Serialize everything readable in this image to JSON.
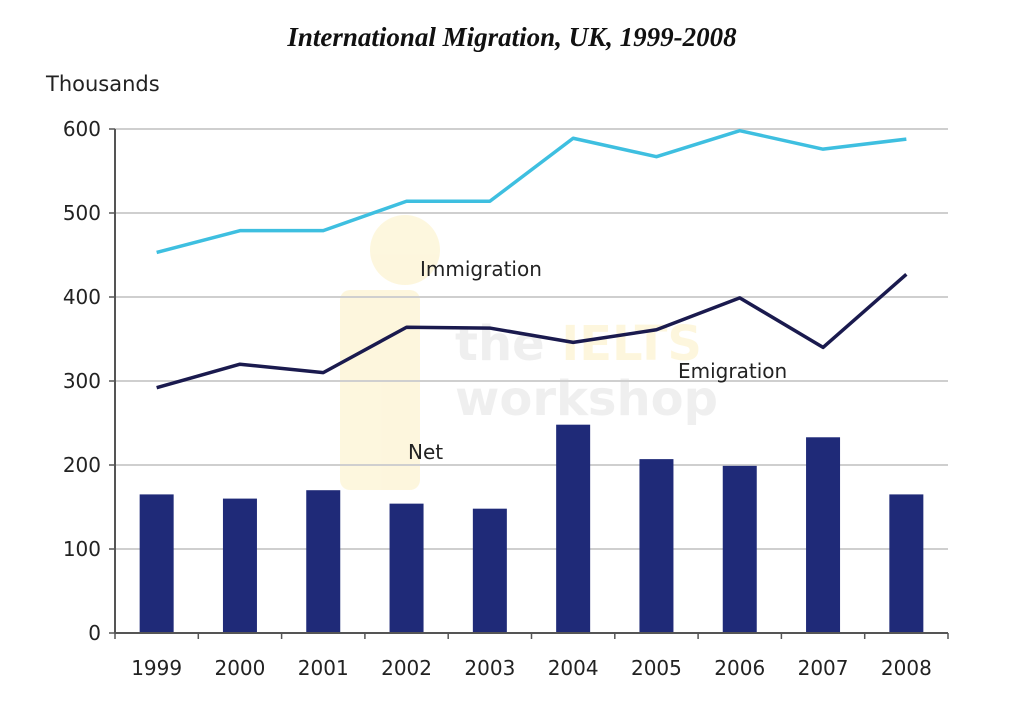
{
  "chart_data": {
    "type": "bar+line",
    "title": "International Migration, UK, 1999-2008",
    "ylabel": "Thousands",
    "xlabel": "",
    "ylim": [
      0,
      600
    ],
    "yticks": [
      0,
      100,
      200,
      300,
      400,
      500,
      600
    ],
    "grid": true,
    "categories": [
      "1999",
      "2000",
      "2001",
      "2002",
      "2003",
      "2004",
      "2005",
      "2006",
      "2007",
      "2008"
    ],
    "series": [
      {
        "name": "Immigration",
        "type": "line",
        "color": "#3ebfe0",
        "values": [
          453,
          479,
          479,
          514,
          514,
          589,
          567,
          598,
          576,
          588
        ]
      },
      {
        "name": "Emigration",
        "type": "line",
        "color": "#1a1a4e",
        "values": [
          292,
          320,
          310,
          364,
          363,
          346,
          361,
          399,
          340,
          427
        ]
      },
      {
        "name": "Net",
        "type": "bar",
        "color": "#1f2a78",
        "values": [
          165,
          160,
          170,
          154,
          148,
          248,
          207,
          199,
          233,
          165
        ]
      }
    ]
  },
  "watermark": "the IELTS workshop"
}
